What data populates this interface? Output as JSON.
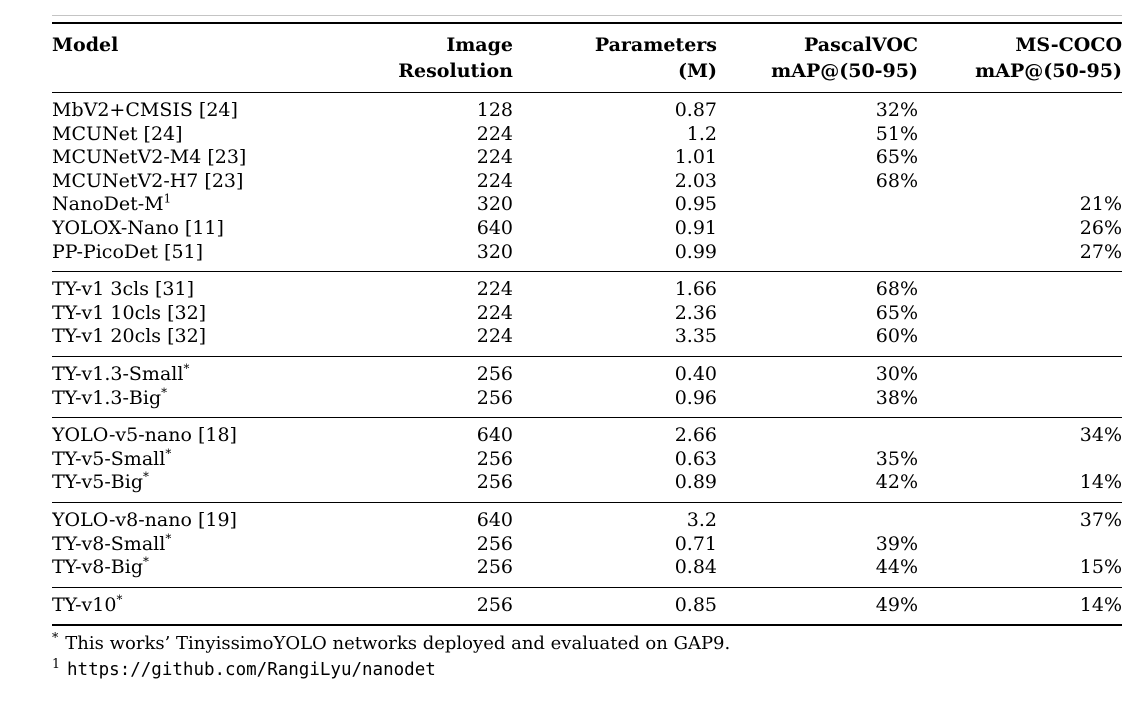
{
  "page": {
    "background": "#ffffff",
    "text_color": "#000000",
    "rule_color": "#000000"
  },
  "table": {
    "columns": [
      {
        "id": "model",
        "lines": [
          "Model",
          ""
        ]
      },
      {
        "id": "resolution",
        "lines": [
          "Image",
          "Resolution"
        ]
      },
      {
        "id": "parameters",
        "lines": [
          "Parameters",
          "(M)"
        ]
      },
      {
        "id": "pascalvoc",
        "lines": [
          "PascalVOC",
          "mAP@(50-95)"
        ]
      },
      {
        "id": "mscoco",
        "lines": [
          "MS-COCO",
          "mAP@(50-95)"
        ]
      }
    ],
    "groups": [
      {
        "rows": [
          {
            "model": "MbV2+CMSIS [24]",
            "sup": "",
            "resolution": "128",
            "parameters": "0.87",
            "pascalvoc": "32%",
            "mscoco": ""
          },
          {
            "model": "MCUNet [24]",
            "sup": "",
            "resolution": "224",
            "parameters": "1.2",
            "pascalvoc": "51%",
            "mscoco": ""
          },
          {
            "model": "MCUNetV2-M4 [23]",
            "sup": "",
            "resolution": "224",
            "parameters": "1.01",
            "pascalvoc": "65%",
            "mscoco": ""
          },
          {
            "model": "MCUNetV2-H7 [23]",
            "sup": "",
            "resolution": "224",
            "parameters": "2.03",
            "pascalvoc": "68%",
            "mscoco": ""
          },
          {
            "model": "NanoDet-M",
            "sup": "1",
            "resolution": "320",
            "parameters": "0.95",
            "pascalvoc": "",
            "mscoco": "21%"
          },
          {
            "model": "YOLOX-Nano [11]",
            "sup": "",
            "resolution": "640",
            "parameters": "0.91",
            "pascalvoc": "",
            "mscoco": "26%"
          },
          {
            "model": "PP-PicoDet [51]",
            "sup": "",
            "resolution": "320",
            "parameters": "0.99",
            "pascalvoc": "",
            "mscoco": "27%"
          }
        ]
      },
      {
        "rows": [
          {
            "model": "TY-v1 3cls [31]",
            "sup": "",
            "resolution": "224",
            "parameters": "1.66",
            "pascalvoc": "68%",
            "mscoco": ""
          },
          {
            "model": "TY-v1 10cls [32]",
            "sup": "",
            "resolution": "224",
            "parameters": "2.36",
            "pascalvoc": "65%",
            "mscoco": ""
          },
          {
            "model": "TY-v1 20cls [32]",
            "sup": "",
            "resolution": "224",
            "parameters": "3.35",
            "pascalvoc": "60%",
            "mscoco": ""
          }
        ]
      },
      {
        "rows": [
          {
            "model": "TY-v1.3-Small",
            "sup": "*",
            "resolution": "256",
            "parameters": "0.40",
            "pascalvoc": "30%",
            "mscoco": ""
          },
          {
            "model": "TY-v1.3-Big",
            "sup": "*",
            "resolution": "256",
            "parameters": "0.96",
            "pascalvoc": "38%",
            "mscoco": ""
          }
        ]
      },
      {
        "rows": [
          {
            "model": "YOLO-v5-nano [18]",
            "sup": "",
            "resolution": "640",
            "parameters": "2.66",
            "pascalvoc": "",
            "mscoco": "34%"
          },
          {
            "model": "TY-v5-Small",
            "sup": "*",
            "resolution": "256",
            "parameters": "0.63",
            "pascalvoc": "35%",
            "mscoco": ""
          },
          {
            "model": "TY-v5-Big",
            "sup": "*",
            "resolution": "256",
            "parameters": "0.89",
            "pascalvoc": "42%",
            "mscoco": "14%"
          }
        ]
      },
      {
        "rows": [
          {
            "model": "YOLO-v8-nano [19]",
            "sup": "",
            "resolution": "640",
            "parameters": "3.2",
            "pascalvoc": "",
            "mscoco": "37%"
          },
          {
            "model": "TY-v8-Small",
            "sup": "*",
            "resolution": "256",
            "parameters": "0.71",
            "pascalvoc": "39%",
            "mscoco": ""
          },
          {
            "model": "TY-v8-Big",
            "sup": "*",
            "resolution": "256",
            "parameters": "0.84",
            "pascalvoc": "44%",
            "mscoco": "15%"
          }
        ]
      },
      {
        "rows": [
          {
            "model": "TY-v10",
            "sup": "*",
            "resolution": "256",
            "parameters": "0.85",
            "pascalvoc": "49%",
            "mscoco": "14%"
          }
        ]
      }
    ]
  },
  "footnotes": [
    {
      "marker": "*",
      "text": "This works’ TinyissimoYOLO networks deployed and evaluated on GAP9.",
      "mono": false
    },
    {
      "marker": "1",
      "text": "https://github.com/RangiLyu/nanodet",
      "mono": true
    }
  ]
}
